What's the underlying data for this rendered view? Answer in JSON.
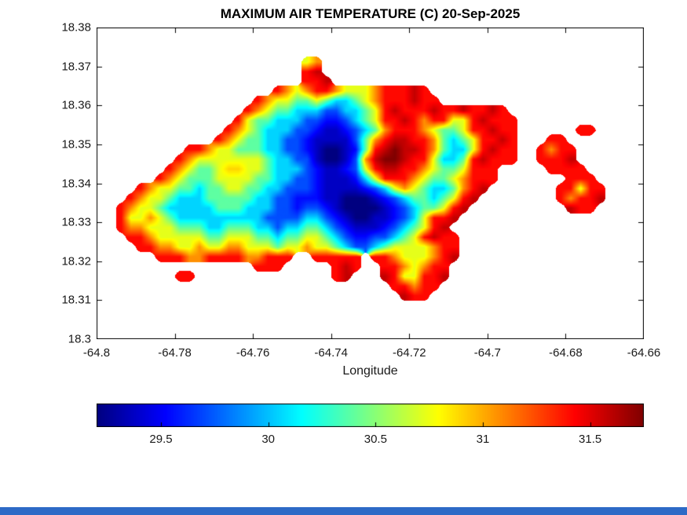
{
  "window": {
    "bottom_strip_color": "#2d6ac6",
    "background_color": "#ffffff"
  },
  "chart_data": {
    "type": "heatmap",
    "title": "MAXIMUM AIR TEMPERATURE (C) 20-Sep-2025",
    "variable": "maximum air temperature",
    "units": "C",
    "date": "20-Sep-2025",
    "xlabel": "Longitude",
    "ylabel": "",
    "xlim": [
      -64.8,
      -64.66
    ],
    "ylim": [
      18.3,
      18.38
    ],
    "xticks": [
      -64.8,
      -64.78,
      -64.76,
      -64.74,
      -64.72,
      -64.7,
      -64.68,
      -64.66
    ],
    "xtick_labels": [
      "-64.8",
      "-64.78",
      "-64.76",
      "-64.74",
      "-64.72",
      "-64.7",
      "-64.68",
      "-64.66"
    ],
    "yticks": [
      18.3,
      18.31,
      18.32,
      18.33,
      18.34,
      18.35,
      18.36,
      18.37,
      18.38
    ],
    "ytick_labels": [
      "18.3",
      "18.31",
      "18.32",
      "18.33",
      "18.34",
      "18.35",
      "18.36",
      "18.37",
      "18.38"
    ],
    "colormap": "jet",
    "clim": [
      29.2,
      31.75
    ],
    "grid_on": false,
    "legend": "none",
    "colorbar": {
      "orientation": "horizontal",
      "location": "below-axes",
      "ticks": [
        29.5,
        30,
        30.5,
        31,
        31.5
      ],
      "tick_labels": [
        "29.5",
        "30",
        "30.5",
        "31",
        "31.5"
      ]
    },
    "grid_encoding": {
      "sea": ".",
      "levels": "0123456789abcdef",
      "value_min": 29.2,
      "value_max": 31.75,
      "note": "temperature = value_min + (level_index/15)*(value_max-value_min); '.' = no data (sea)",
      "row0": "north (lat 18.38)",
      "nx": 56,
      "ny": 32
    },
    "grid": [
      "........................................................",
      "........................................................",
      "........................................................",
      ".....................9b.................................",
      ".....................de.................................",
      ".....................dde................................",
      "..................db9bddb999bddded......................",
      "................db9977975579bdddedd.....................",
      "...............db977555335579dedddeddedded..............",
      "..............d97755533223579ddedbdd99deddd.............",
      ".............db97555332112357bdddb9779ddedd......dd.....",
      "............db97755332111137bdeeddb7579dded...dd........",
      ".........ddb9977755332100127defeedb7559dedd..dbdd.......",
      "........db99999997553310013beffedd9557deddd..ddde.......",
      ".......db9779aa9975553211239deeddb9779ddd.....dddd......",
      "......db977799997755332111259dddb9779bddd.......ddd.....",
      "....db9977577997755333211112359b97557bde.......dd9dd....",
      "...db99755577777553322211000123577579de........dbdde....",
      "..db99755555777555332332100001235779de..........edd.....",
      "..d99b9755555555533335532100112359dde...................",
      "..dbb99977755777553557753211123579de....................",
      "...ddb999997799977577997532233579dedd...................",
      "....ddbb99b99bb999799b997533579999bdd...................",
      "......dddbbddddbbddd..ddddd.ddb999bde...................",
      "................ddd.....ded..ddb9bdd....................",
      "........dd..............de...ed99dde....................",
      "..............................ddbdd.....................",
      "...............................edd......................",
      "........................................................",
      "........................................................",
      "........................................................",
      "........................................................"
    ]
  }
}
